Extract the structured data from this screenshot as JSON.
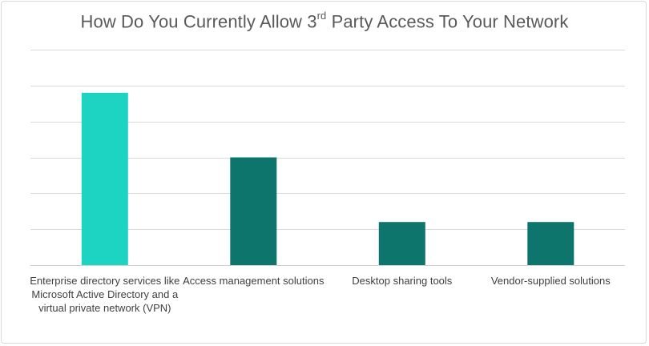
{
  "chart_data": {
    "type": "bar",
    "title": {
      "prefix": "How Do You Currently Allow 3",
      "superscript": "rd",
      "suffix": " Party Access To Your Network"
    },
    "categories": [
      "Enterprise directory services like Microsoft Active Directory and a virtual private network (VPN)",
      "Access management solutions",
      "Desktop sharing tools",
      "Vendor-supplied solutions"
    ],
    "values": [
      4.8,
      3.0,
      1.2,
      1.2
    ],
    "ylim": [
      0,
      6
    ],
    "y_gridlines": [
      0,
      1,
      2,
      3,
      4,
      5,
      6
    ],
    "y_tick_labels_visible": false,
    "grid": true,
    "legend": "none",
    "colors": [
      "#1dd3c2",
      "#0e756d",
      "#0e756d",
      "#0e756d"
    ],
    "gridline_color": "#d9d9d9",
    "axis_color": "#d0d0d0"
  }
}
